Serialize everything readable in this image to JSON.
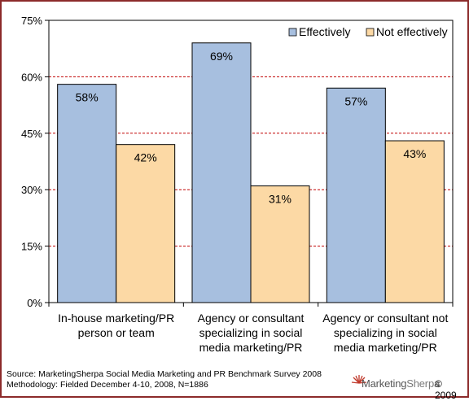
{
  "chart_data": {
    "type": "bar",
    "categories": [
      [
        "In-house marketing/PR",
        "person or team"
      ],
      [
        "Agency or consultant",
        "specializing in social",
        "media marketing/PR"
      ],
      [
        "Agency or consultant not",
        "specializing in social",
        "media marketing/PR"
      ]
    ],
    "series": [
      {
        "name": "Effectively",
        "values": [
          58,
          69,
          57
        ],
        "labels": [
          "58%",
          "69%",
          "57%"
        ],
        "color": "#a7bfdf"
      },
      {
        "name": "Not effectively",
        "values": [
          42,
          31,
          43
        ],
        "labels": [
          "42%",
          "31%",
          "43%"
        ],
        "color": "#fcd9a5"
      }
    ],
    "ylim": [
      0,
      75
    ],
    "yticks": [
      0,
      15,
      30,
      45,
      60,
      75
    ],
    "ytick_labels": [
      "0%",
      "15%",
      "30%",
      "45%",
      "60%",
      "75%"
    ],
    "grid": true,
    "grid_color": "#c00000",
    "legend_position": "top-right",
    "title": "",
    "xlabel": "",
    "ylabel": ""
  },
  "footer": {
    "source": "Source: MarketingSherpa Social Media Marketing and PR Benchmark Survey 2008",
    "methodology": "Methodology: Fielded December 4-10, 2008, N=1886"
  },
  "logo": {
    "brand_a": "Marketing",
    "brand_b": "Sherpa",
    "copyright": "© 2009",
    "icon": "sunburst-logo-icon"
  },
  "colors": {
    "border": "#8c2a2a",
    "logo_accent": "#c0392b"
  }
}
